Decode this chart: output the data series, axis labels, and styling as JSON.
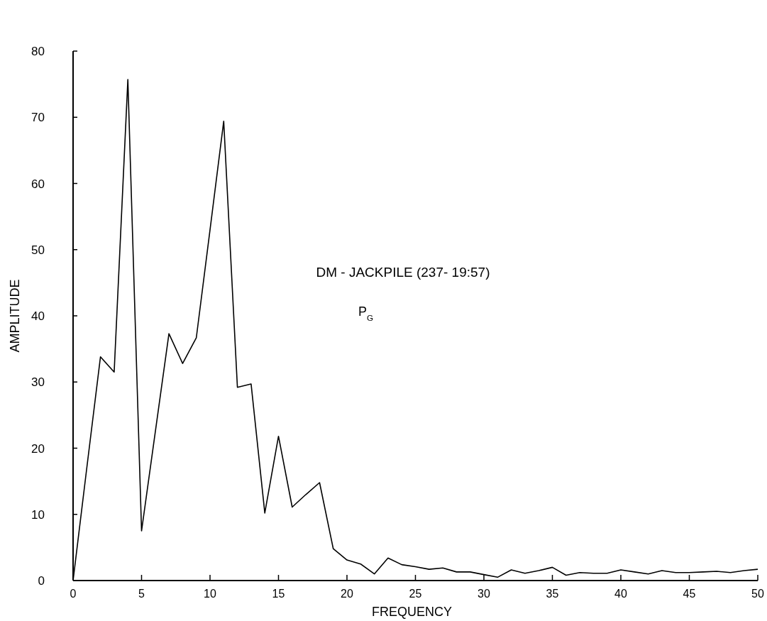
{
  "chart_data": {
    "type": "line",
    "title": "DM - JACKPILE (237- 19:57)",
    "annotations": [
      "P$_{G}$"
    ],
    "xlabel": "FREQUENCY",
    "ylabel": "AMPLITUDE",
    "x": [
      0,
      1,
      2,
      3,
      4,
      5,
      6,
      7,
      8,
      9,
      10,
      11,
      12,
      13,
      14,
      15,
      16,
      17,
      18,
      19,
      20,
      21,
      22,
      23,
      24,
      25,
      26,
      27,
      28,
      29,
      30,
      31,
      32,
      33,
      34,
      35,
      36,
      37,
      38,
      39,
      40,
      41,
      42,
      43,
      44,
      45,
      46,
      47,
      48,
      49,
      50
    ],
    "series": [
      {
        "color": "#000000",
        "values": [
          0,
          17,
          33.8,
          31.5,
          75.7,
          7.5,
          22.4,
          37.3,
          32.8,
          36.7,
          53,
          69.4,
          29.2,
          29.7,
          10.2,
          21.8,
          11.1,
          13,
          14.8,
          4.8,
          3.1,
          2.5,
          1.0,
          3.4,
          2.4,
          2.1,
          1.7,
          1.9,
          1.3,
          1.3,
          0.9,
          0.5,
          1.6,
          1.1,
          1.5,
          2.0,
          0.8,
          1.2,
          1.1,
          1.1,
          1.6,
          1.3,
          1.0,
          1.5,
          1.2,
          1.2,
          1.3,
          1.4,
          1.2,
          1.5,
          1.7
        ]
      }
    ],
    "xlim": [
      0,
      50
    ],
    "xticks": [
      0,
      5,
      10,
      15,
      20,
      25,
      30,
      35,
      40,
      45,
      50
    ],
    "ylim": [
      0,
      80
    ],
    "yticks": [
      0,
      10,
      20,
      30,
      40,
      50,
      60,
      70,
      80
    ],
    "grid": false,
    "marker": "none",
    "line_style": "solid"
  }
}
